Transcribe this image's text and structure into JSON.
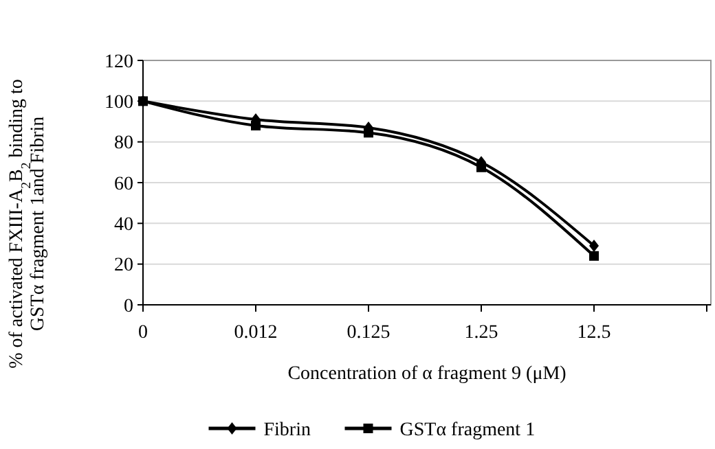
{
  "chart_data": {
    "type": "line",
    "xlabel": "Concentration of α fragment 9 (μM)",
    "ylabel": "% of activated FXIII-A$_{2}$B$_{2}$ binding to GSTα fragment 1and Fibrin",
    "categories": [
      "0",
      "0.012",
      "0.125",
      "1.25",
      "12.5"
    ],
    "ylim": [
      0,
      120
    ],
    "yticks": [
      0,
      20,
      40,
      60,
      80,
      100,
      120
    ],
    "grid": "y",
    "legend": "bottom",
    "series": [
      {
        "name": "Fibrin",
        "color": "#000000",
        "marker": "diamond",
        "values": [
          100,
          91,
          87,
          70,
          29
        ]
      },
      {
        "name": "GSTα fragment 1",
        "color": "#000000",
        "marker": "square",
        "values": [
          100,
          88,
          84.5,
          67.5,
          24
        ]
      }
    ]
  }
}
